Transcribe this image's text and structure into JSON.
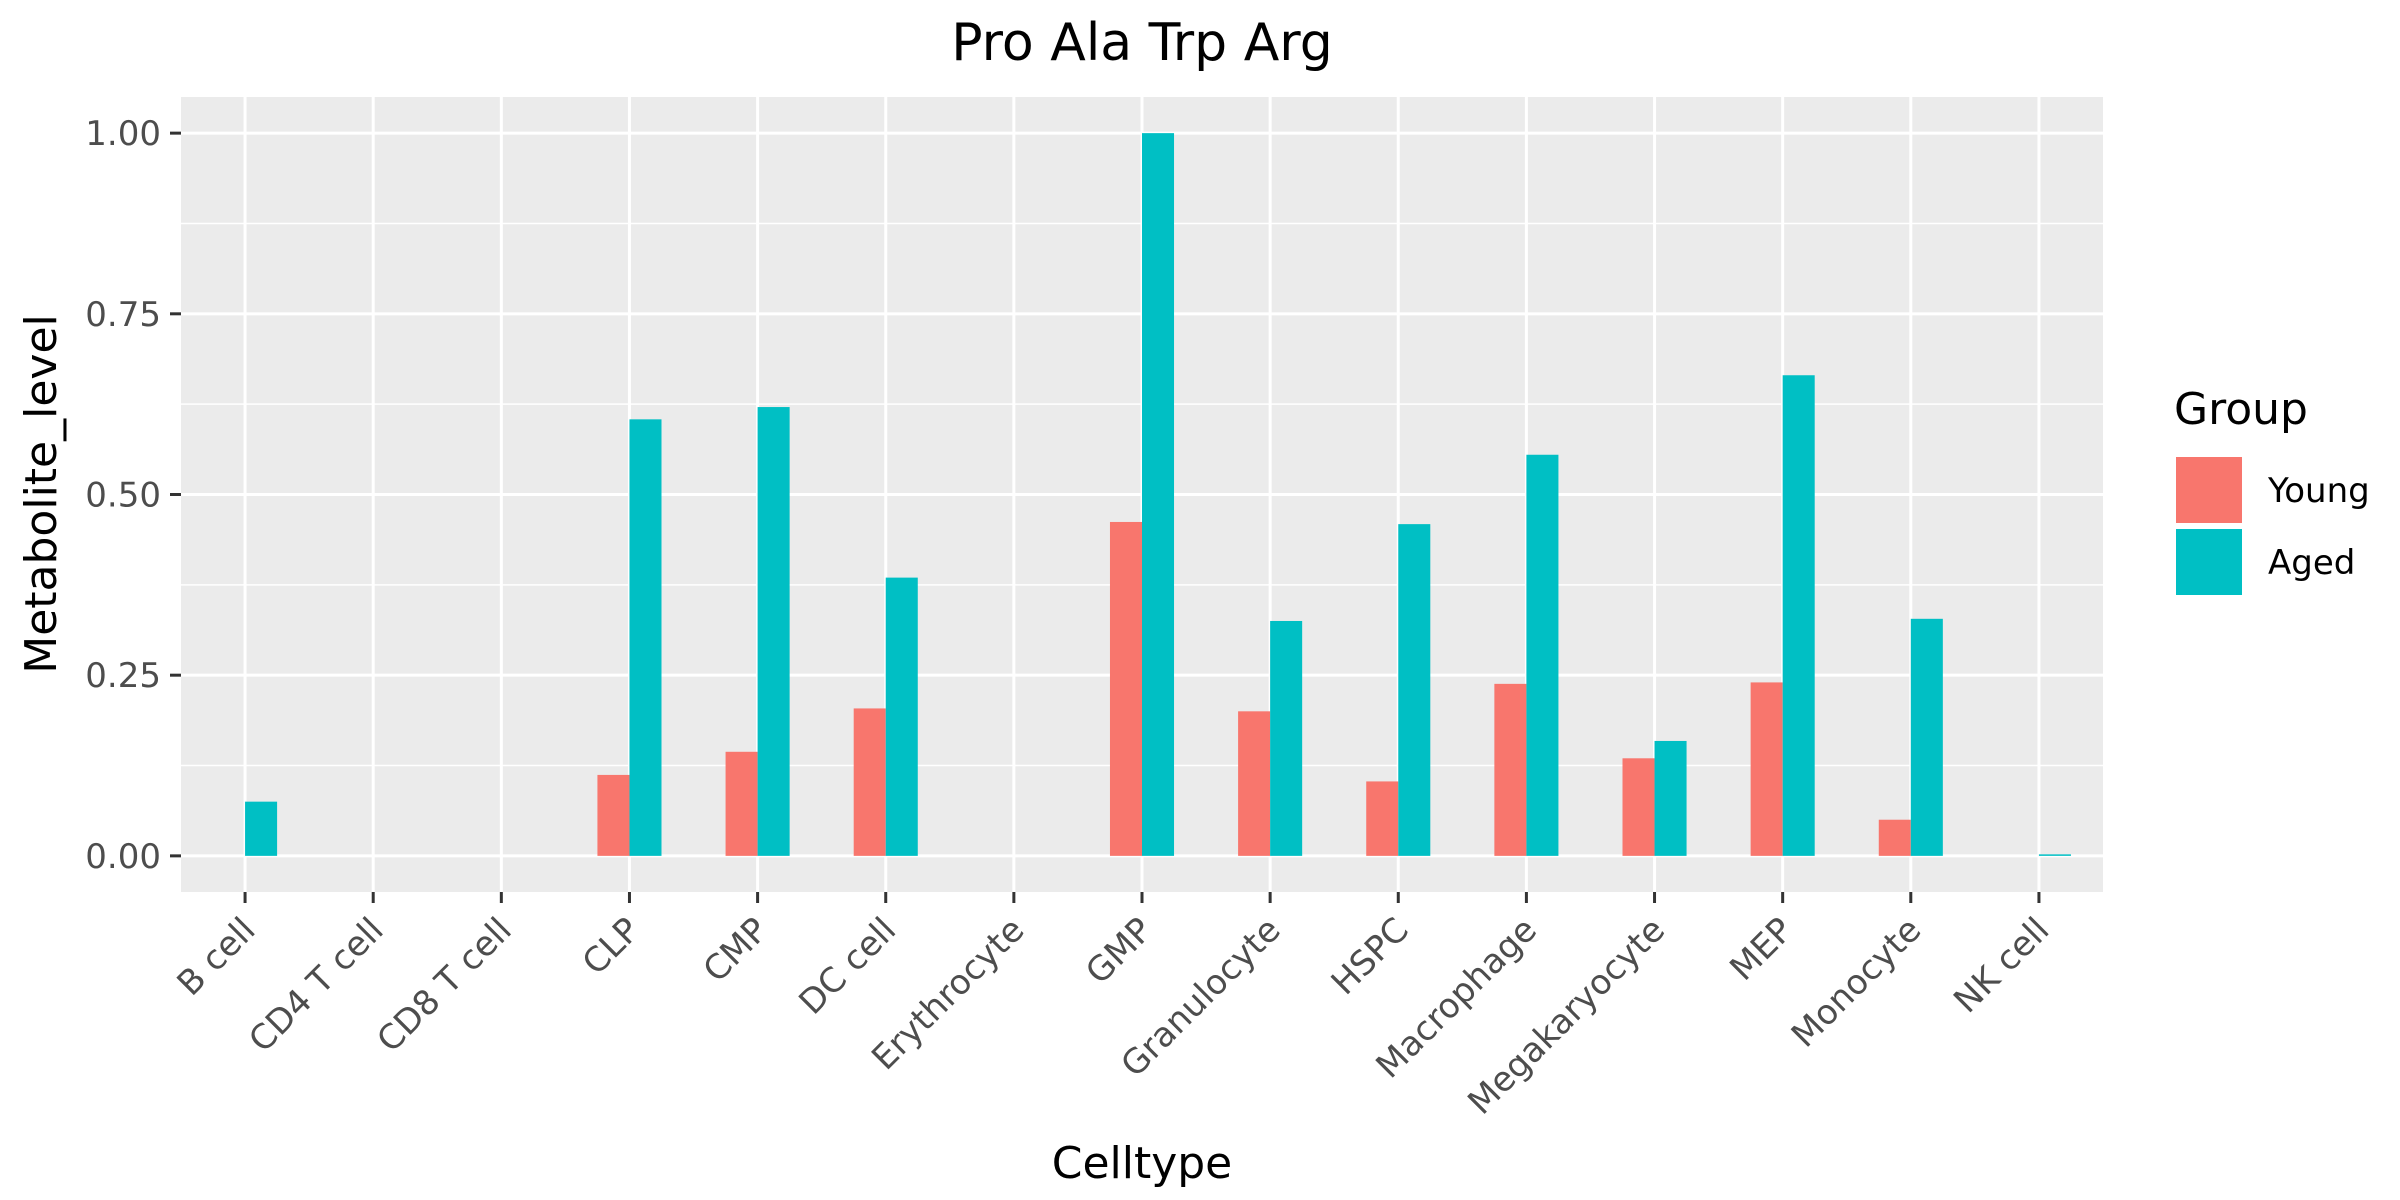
{
  "chart_data": {
    "type": "bar",
    "title": "Pro Ala Trp Arg",
    "xlabel": "Celltype",
    "ylabel": "Metabolite_level",
    "categories": [
      "B cell",
      "CD4 T cell",
      "CD8 T cell",
      "CLP",
      "CMP",
      "DC cell",
      "Erythrocyte",
      "GMP",
      "Granulocyte",
      "HSPC",
      "Macrophage",
      "Megakaryocyte",
      "MEP",
      "Monocyte",
      "NK cell"
    ],
    "series": [
      {
        "name": "Young",
        "color": "#F8766D",
        "values": [
          null,
          null,
          null,
          0.112,
          0.144,
          0.204,
          null,
          0.462,
          0.2,
          0.103,
          0.238,
          0.135,
          0.24,
          0.05,
          null
        ]
      },
      {
        "name": "Aged",
        "color": "#00BFC4",
        "values": [
          0.075,
          null,
          null,
          0.604,
          0.621,
          0.385,
          null,
          1.0,
          0.325,
          0.459,
          0.555,
          0.159,
          0.665,
          0.328,
          0.002
        ]
      }
    ],
    "yticks": [
      "0.00",
      "0.25",
      "0.50",
      "0.75",
      "1.00"
    ],
    "ylim": [
      -0.05,
      1.05
    ],
    "grid": true,
    "legend": {
      "title": "Group",
      "position": "right"
    }
  }
}
